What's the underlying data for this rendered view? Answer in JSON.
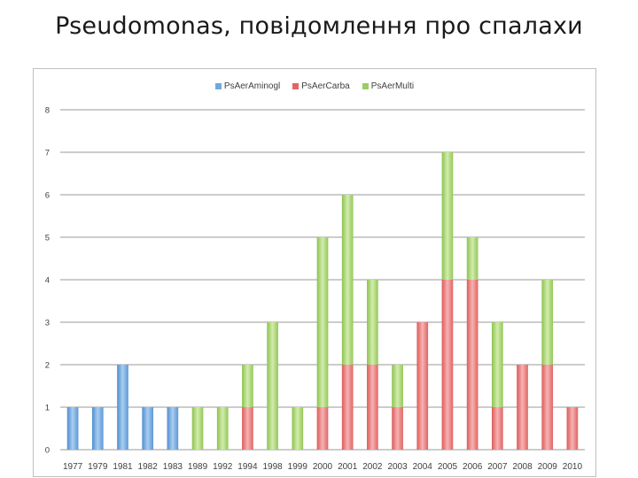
{
  "slide": {
    "title": "Pseudomonas, повідомлення про спалахи"
  },
  "chart_data": {
    "type": "bar",
    "stacked": true,
    "title": "",
    "xlabel": "",
    "ylabel": "",
    "ylim": [
      0,
      8
    ],
    "yticks": [
      0,
      1,
      2,
      3,
      4,
      5,
      6,
      7,
      8
    ],
    "grid": true,
    "legend_position": "top",
    "categories": [
      "1977",
      "1979",
      "1981",
      "1982",
      "1983",
      "1989",
      "1992",
      "1994",
      "1998",
      "1999",
      "2000",
      "2001",
      "2002",
      "2003",
      "2004",
      "2005",
      "2006",
      "2007",
      "2008",
      "2009",
      "2010"
    ],
    "series": [
      {
        "name": "PsAerAminogl",
        "color": "#6fa8dc",
        "values": [
          1,
          1,
          2,
          1,
          1,
          0,
          0,
          0,
          0,
          0,
          0,
          0,
          0,
          0,
          0,
          0,
          0,
          0,
          0,
          0,
          0
        ]
      },
      {
        "name": "PsAerCarba",
        "color": "#e06666",
        "values": [
          0,
          0,
          0,
          0,
          0,
          0,
          0,
          1,
          0,
          0,
          1,
          2,
          2,
          1,
          3,
          4,
          4,
          1,
          2,
          2,
          1
        ]
      },
      {
        "name": "PsAerMulti",
        "color": "#9ccc65",
        "values": [
          0,
          0,
          0,
          0,
          0,
          1,
          1,
          1,
          3,
          1,
          4,
          4,
          2,
          1,
          0,
          3,
          1,
          2,
          0,
          2,
          0
        ]
      }
    ]
  }
}
